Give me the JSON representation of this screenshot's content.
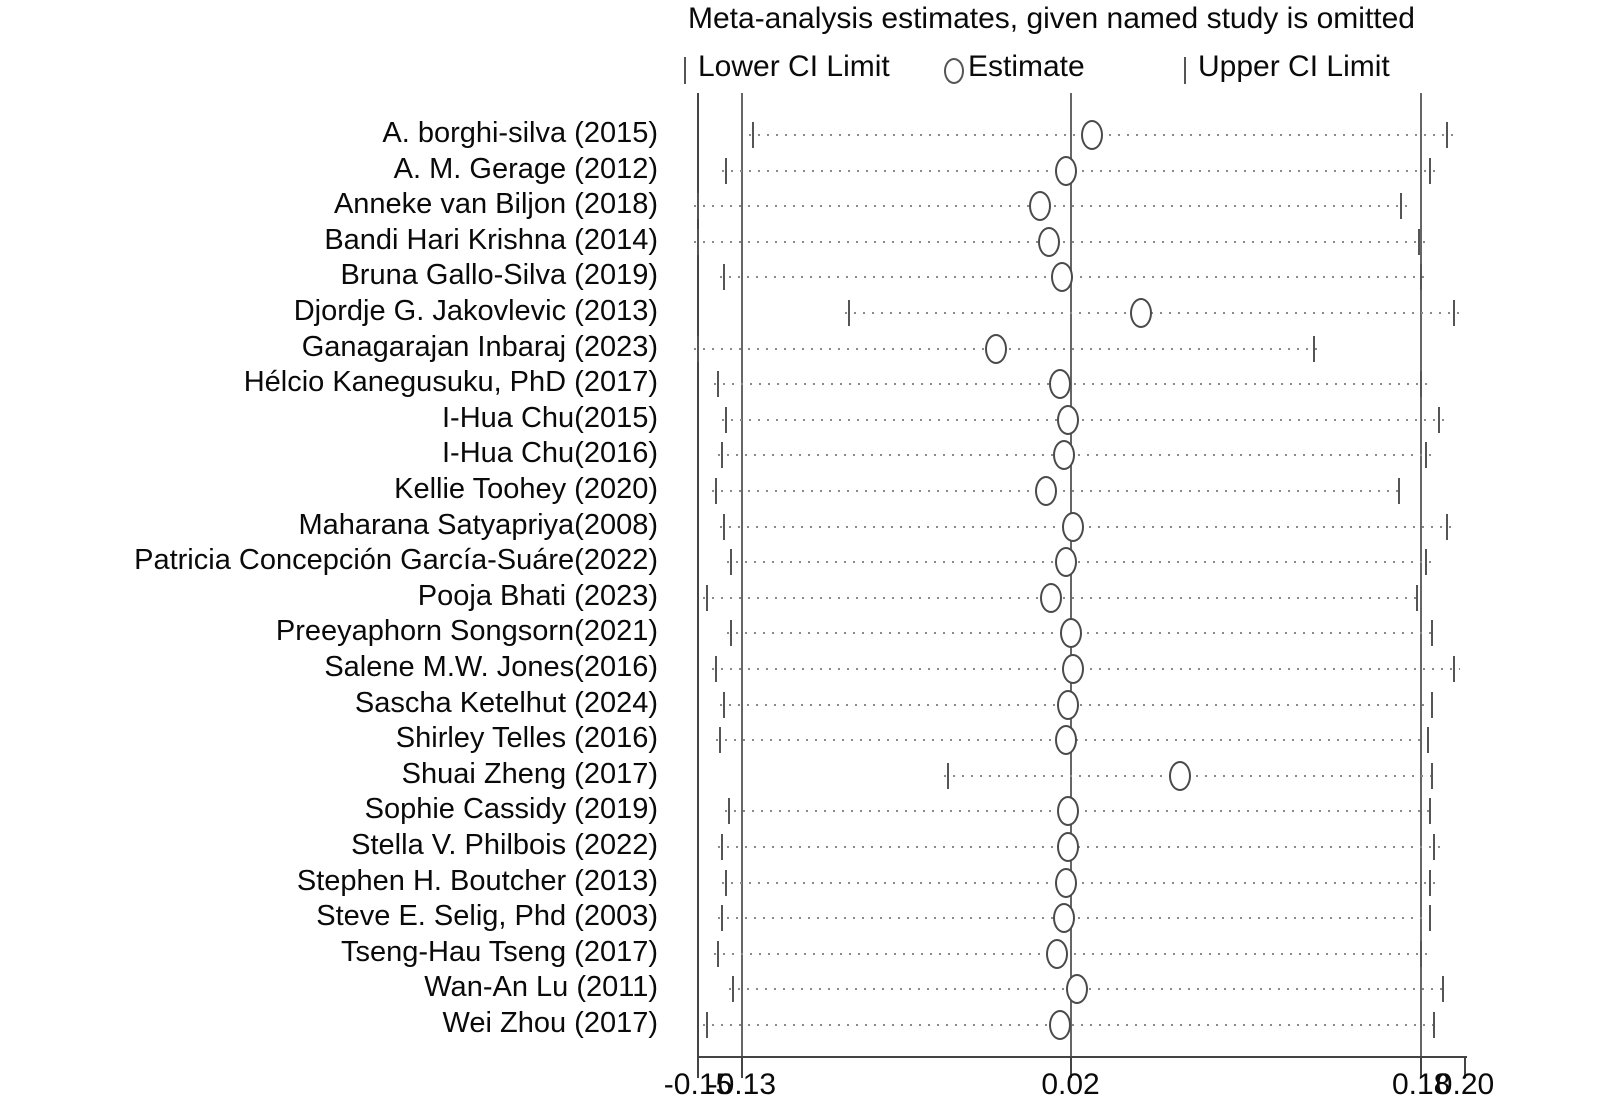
{
  "title": "Meta-analysis estimates, given named study is omitted",
  "legend": {
    "lower_label": "Lower CI Limit",
    "estimate_label": "Estimate",
    "upper_label": "Upper CI Limit"
  },
  "colors": {
    "background": "#ffffff",
    "text": "#0a0a0a",
    "reference_line": "#666666",
    "axis": "#444444",
    "marker": "#555555",
    "dotted_line": "#8a8a8a",
    "circle_stroke": "#4a4a4a"
  },
  "chart_data": {
    "type": "scatter",
    "subtype": "forest-leave-one-out-sensitivity",
    "title": "Meta-analysis estimates, given named study is omitted",
    "xlabel": "",
    "ylabel": "",
    "xlim": [
      -0.15,
      0.2
    ],
    "grid": "dotted-row-guides",
    "legend_position": "top",
    "x_tick_values": [
      -0.15,
      -0.13,
      0.02,
      0.18,
      0.2
    ],
    "x_tick_labels": [
      "-0.15",
      "-0.13",
      "0.02",
      "0.18",
      "0.20"
    ],
    "reference_lines": {
      "axis_min": -0.15,
      "overall_lower": -0.13,
      "overall_estimate": 0.02,
      "overall_upper": 0.18
    },
    "studies": [
      {
        "label": "A. borghi-silva (2015)",
        "lower": -0.125,
        "estimate": 0.03,
        "upper": 0.192
      },
      {
        "label": "A. M. Gerage (2012)",
        "lower": -0.137,
        "estimate": 0.018,
        "upper": 0.184
      },
      {
        "label": "Anneke van Biljon (2018)",
        "lower": -0.15,
        "estimate": 0.006,
        "upper": 0.171
      },
      {
        "label": "Bandi Hari Krishna (2014)",
        "lower": -0.15,
        "estimate": 0.01,
        "upper": 0.179
      },
      {
        "label": "Bruna Gallo-Silva (2019)",
        "lower": -0.138,
        "estimate": 0.016,
        "upper": 0.18
      },
      {
        "label": "Djordje G. Jakovlevic (2013)",
        "lower": -0.081,
        "estimate": 0.052,
        "upper": 0.195
      },
      {
        "label": "Ganagarajan Inbaraj (2023)",
        "lower": -0.15,
        "estimate": -0.014,
        "upper": 0.131
      },
      {
        "label": "Hélcio Kanegusuku, PhD (2017)",
        "lower": -0.141,
        "estimate": 0.015,
        "upper": 0.18
      },
      {
        "label": "I-Hua Chu(2015)",
        "lower": -0.137,
        "estimate": 0.019,
        "upper": 0.188
      },
      {
        "label": "I-Hua Chu(2016)",
        "lower": -0.139,
        "estimate": 0.017,
        "upper": 0.182
      },
      {
        "label": "Kellie Toohey (2020)",
        "lower": -0.142,
        "estimate": 0.009,
        "upper": 0.17
      },
      {
        "label": "Maharana Satyapriya(2008)",
        "lower": -0.138,
        "estimate": 0.021,
        "upper": 0.192
      },
      {
        "label": "Patricia Concepción García-Suáre(2022)",
        "lower": -0.135,
        "estimate": 0.018,
        "upper": 0.182
      },
      {
        "label": "Pooja Bhati (2023)",
        "lower": -0.146,
        "estimate": 0.011,
        "upper": 0.178
      },
      {
        "label": "Preeyaphorn Songsorn(2021)",
        "lower": -0.135,
        "estimate": 0.02,
        "upper": 0.185
      },
      {
        "label": "Salene M.W. Jones(2016)",
        "lower": -0.142,
        "estimate": 0.021,
        "upper": 0.195
      },
      {
        "label": "Sascha Ketelhut (2024)",
        "lower": -0.138,
        "estimate": 0.019,
        "upper": 0.185
      },
      {
        "label": "Shirley Telles (2016)",
        "lower": -0.14,
        "estimate": 0.018,
        "upper": 0.183
      },
      {
        "label": "Shuai Zheng (2017)",
        "lower": -0.036,
        "estimate": 0.07,
        "upper": 0.185
      },
      {
        "label": "Sophie Cassidy (2019)",
        "lower": -0.136,
        "estimate": 0.019,
        "upper": 0.184
      },
      {
        "label": "Stella V. Philbois (2022)",
        "lower": -0.139,
        "estimate": 0.019,
        "upper": 0.186
      },
      {
        "label": "Stephen H. Boutcher (2013)",
        "lower": -0.137,
        "estimate": 0.018,
        "upper": 0.184
      },
      {
        "label": "Steve E. Selig, Phd (2003)",
        "lower": -0.139,
        "estimate": 0.017,
        "upper": 0.184
      },
      {
        "label": "Tseng-Hau Tseng (2017)",
        "lower": -0.141,
        "estimate": 0.014,
        "upper": 0.18
      },
      {
        "label": "Wan-An Lu (2011)",
        "lower": -0.134,
        "estimate": 0.023,
        "upper": 0.19
      },
      {
        "label": "Wei Zhou (2017)",
        "lower": -0.146,
        "estimate": 0.015,
        "upper": 0.186
      }
    ]
  }
}
